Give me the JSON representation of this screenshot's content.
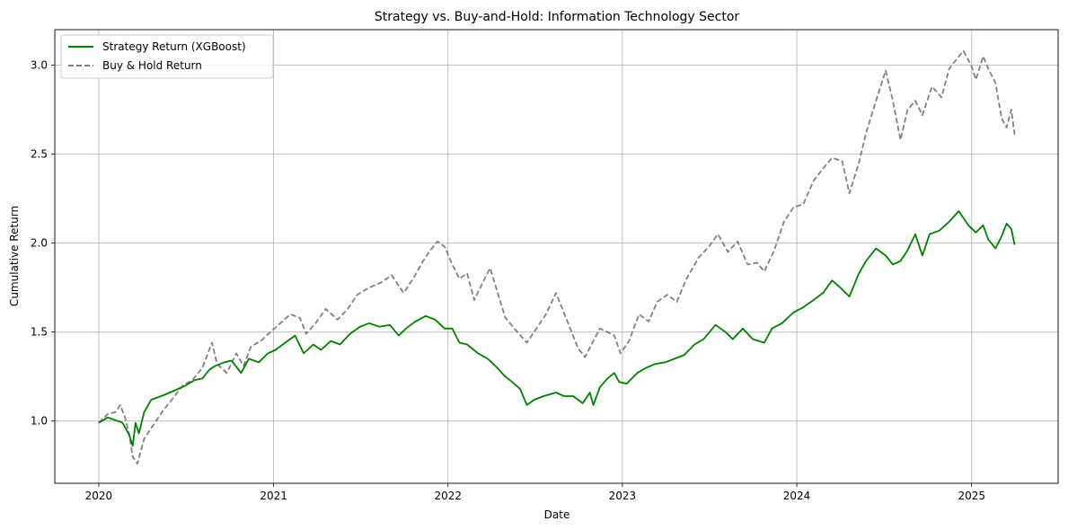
{
  "chart_data": {
    "type": "line",
    "title": "Strategy vs. Buy-and-Hold: Information Technology Sector",
    "xlabel": "Date",
    "ylabel": "Cumulative Return",
    "xlim": [
      "2019-10-01",
      "2025-07-01"
    ],
    "ylim": [
      0.65,
      3.2
    ],
    "x_ticks": [
      {
        "label": "2020",
        "date": "2020-01-01"
      },
      {
        "label": "2021",
        "date": "2021-01-01"
      },
      {
        "label": "2022",
        "date": "2022-01-01"
      },
      {
        "label": "2023",
        "date": "2023-01-01"
      },
      {
        "label": "2024",
        "date": "2024-01-01"
      },
      {
        "label": "2025",
        "date": "2025-01-01"
      }
    ],
    "y_ticks": [
      1.0,
      1.5,
      2.0,
      2.5,
      3.0
    ],
    "grid": true,
    "legend": "upper-left",
    "series": [
      {
        "name": "Strategy Return (XGBoost)",
        "color": "#008000",
        "style": "solid",
        "points": [
          [
            "2020-01-01",
            0.99
          ],
          [
            "2020-01-20",
            1.02
          ],
          [
            "2020-02-10",
            1.0
          ],
          [
            "2020-02-20",
            0.99
          ],
          [
            "2020-03-05",
            0.92
          ],
          [
            "2020-03-12",
            0.86
          ],
          [
            "2020-03-18",
            0.99
          ],
          [
            "2020-03-25",
            0.93
          ],
          [
            "2020-04-05",
            1.05
          ],
          [
            "2020-04-20",
            1.12
          ],
          [
            "2020-05-01",
            1.13
          ],
          [
            "2020-05-20",
            1.15
          ],
          [
            "2020-06-15",
            1.18
          ],
          [
            "2020-07-01",
            1.2
          ],
          [
            "2020-07-20",
            1.23
          ],
          [
            "2020-08-05",
            1.24
          ],
          [
            "2020-08-20",
            1.29
          ],
          [
            "2020-09-01",
            1.31
          ],
          [
            "2020-09-20",
            1.33
          ],
          [
            "2020-10-05",
            1.34
          ],
          [
            "2020-10-25",
            1.27
          ],
          [
            "2020-11-10",
            1.35
          ],
          [
            "2020-12-01",
            1.33
          ],
          [
            "2020-12-20",
            1.38
          ],
          [
            "2021-01-05",
            1.4
          ],
          [
            "2021-01-25",
            1.44
          ],
          [
            "2021-02-15",
            1.48
          ],
          [
            "2021-03-05",
            1.38
          ],
          [
            "2021-03-25",
            1.43
          ],
          [
            "2021-04-10",
            1.4
          ],
          [
            "2021-05-01",
            1.45
          ],
          [
            "2021-05-20",
            1.43
          ],
          [
            "2021-06-10",
            1.49
          ],
          [
            "2021-07-01",
            1.53
          ],
          [
            "2021-07-20",
            1.55
          ],
          [
            "2021-08-10",
            1.53
          ],
          [
            "2021-09-01",
            1.54
          ],
          [
            "2021-09-20",
            1.48
          ],
          [
            "2021-10-05",
            1.52
          ],
          [
            "2021-10-25",
            1.56
          ],
          [
            "2021-11-15",
            1.59
          ],
          [
            "2021-12-05",
            1.57
          ],
          [
            "2021-12-25",
            1.52
          ],
          [
            "2022-01-10",
            1.52
          ],
          [
            "2022-01-25",
            1.44
          ],
          [
            "2022-02-10",
            1.43
          ],
          [
            "2022-03-05",
            1.38
          ],
          [
            "2022-03-25",
            1.35
          ],
          [
            "2022-04-10",
            1.31
          ],
          [
            "2022-05-01",
            1.25
          ],
          [
            "2022-05-15",
            1.22
          ],
          [
            "2022-06-01",
            1.18
          ],
          [
            "2022-06-15",
            1.09
          ],
          [
            "2022-07-01",
            1.12
          ],
          [
            "2022-07-20",
            1.14
          ],
          [
            "2022-08-15",
            1.16
          ],
          [
            "2022-09-01",
            1.14
          ],
          [
            "2022-09-20",
            1.14
          ],
          [
            "2022-10-10",
            1.1
          ],
          [
            "2022-10-25",
            1.16
          ],
          [
            "2022-11-01",
            1.09
          ],
          [
            "2022-11-15",
            1.19
          ],
          [
            "2022-12-01",
            1.24
          ],
          [
            "2022-12-15",
            1.27
          ],
          [
            "2022-12-25",
            1.22
          ],
          [
            "2023-01-10",
            1.21
          ],
          [
            "2023-02-01",
            1.27
          ],
          [
            "2023-02-20",
            1.3
          ],
          [
            "2023-03-10",
            1.32
          ],
          [
            "2023-04-01",
            1.33
          ],
          [
            "2023-04-20",
            1.35
          ],
          [
            "2023-05-10",
            1.37
          ],
          [
            "2023-06-01",
            1.43
          ],
          [
            "2023-06-20",
            1.46
          ],
          [
            "2023-07-15",
            1.54
          ],
          [
            "2023-08-05",
            1.5
          ],
          [
            "2023-08-20",
            1.46
          ],
          [
            "2023-09-10",
            1.52
          ],
          [
            "2023-10-01",
            1.46
          ],
          [
            "2023-10-25",
            1.44
          ],
          [
            "2023-11-10",
            1.52
          ],
          [
            "2023-12-01",
            1.55
          ],
          [
            "2023-12-25",
            1.61
          ],
          [
            "2024-01-15",
            1.64
          ],
          [
            "2024-02-05",
            1.68
          ],
          [
            "2024-02-25",
            1.72
          ],
          [
            "2024-03-15",
            1.79
          ],
          [
            "2024-04-05",
            1.74
          ],
          [
            "2024-04-20",
            1.7
          ],
          [
            "2024-05-10",
            1.83
          ],
          [
            "2024-05-25",
            1.9
          ],
          [
            "2024-06-15",
            1.97
          ],
          [
            "2024-07-05",
            1.93
          ],
          [
            "2024-07-20",
            1.88
          ],
          [
            "2024-08-05",
            1.9
          ],
          [
            "2024-08-20",
            1.96
          ],
          [
            "2024-09-05",
            2.05
          ],
          [
            "2024-09-20",
            1.93
          ],
          [
            "2024-10-05",
            2.05
          ],
          [
            "2024-10-25",
            2.07
          ],
          [
            "2024-11-15",
            2.12
          ],
          [
            "2024-12-05",
            2.18
          ],
          [
            "2024-12-25",
            2.1
          ],
          [
            "2025-01-10",
            2.06
          ],
          [
            "2025-01-25",
            2.1
          ],
          [
            "2025-02-05",
            2.02
          ],
          [
            "2025-02-20",
            1.97
          ],
          [
            "2025-03-05",
            2.04
          ],
          [
            "2025-03-15",
            2.11
          ],
          [
            "2025-03-25",
            2.08
          ],
          [
            "2025-04-01",
            1.99
          ]
        ]
      },
      {
        "name": "Buy & Hold Return",
        "color": "#808080",
        "style": "dashed",
        "points": [
          [
            "2020-01-01",
            0.99
          ],
          [
            "2020-01-20",
            1.04
          ],
          [
            "2020-02-05",
            1.05
          ],
          [
            "2020-02-15",
            1.09
          ],
          [
            "2020-02-25",
            1.02
          ],
          [
            "2020-03-05",
            0.92
          ],
          [
            "2020-03-12",
            0.8
          ],
          [
            "2020-03-22",
            0.76
          ],
          [
            "2020-04-05",
            0.9
          ],
          [
            "2020-04-25",
            0.98
          ],
          [
            "2020-05-15",
            1.06
          ],
          [
            "2020-06-05",
            1.13
          ],
          [
            "2020-06-25",
            1.2
          ],
          [
            "2020-07-15",
            1.23
          ],
          [
            "2020-08-05",
            1.3
          ],
          [
            "2020-08-25",
            1.44
          ],
          [
            "2020-09-05",
            1.32
          ],
          [
            "2020-09-25",
            1.27
          ],
          [
            "2020-10-15",
            1.38
          ],
          [
            "2020-10-30",
            1.31
          ],
          [
            "2020-11-15",
            1.42
          ],
          [
            "2020-12-05",
            1.45
          ],
          [
            "2020-12-25",
            1.5
          ],
          [
            "2021-01-15",
            1.55
          ],
          [
            "2021-02-05",
            1.6
          ],
          [
            "2021-02-25",
            1.58
          ],
          [
            "2021-03-10",
            1.49
          ],
          [
            "2021-03-30",
            1.55
          ],
          [
            "2021-04-20",
            1.63
          ],
          [
            "2021-05-15",
            1.57
          ],
          [
            "2021-06-05",
            1.63
          ],
          [
            "2021-06-25",
            1.71
          ],
          [
            "2021-07-20",
            1.75
          ],
          [
            "2021-08-15",
            1.78
          ],
          [
            "2021-09-05",
            1.82
          ],
          [
            "2021-09-30",
            1.72
          ],
          [
            "2021-10-20",
            1.8
          ],
          [
            "2021-11-10",
            1.9
          ],
          [
            "2021-11-25",
            1.96
          ],
          [
            "2021-12-10",
            2.01
          ],
          [
            "2021-12-25",
            1.98
          ],
          [
            "2022-01-10",
            1.88
          ],
          [
            "2022-01-25",
            1.8
          ],
          [
            "2022-02-10",
            1.83
          ],
          [
            "2022-02-25",
            1.68
          ],
          [
            "2022-03-15",
            1.78
          ],
          [
            "2022-03-30",
            1.86
          ],
          [
            "2022-04-15",
            1.72
          ],
          [
            "2022-05-01",
            1.58
          ],
          [
            "2022-05-20",
            1.52
          ],
          [
            "2022-06-15",
            1.44
          ],
          [
            "2022-07-05",
            1.52
          ],
          [
            "2022-07-25",
            1.6
          ],
          [
            "2022-08-15",
            1.72
          ],
          [
            "2022-09-05",
            1.58
          ],
          [
            "2022-09-30",
            1.41
          ],
          [
            "2022-10-15",
            1.36
          ],
          [
            "2022-11-01",
            1.45
          ],
          [
            "2022-11-15",
            1.52
          ],
          [
            "2022-12-01",
            1.5
          ],
          [
            "2022-12-15",
            1.48
          ],
          [
            "2022-12-28",
            1.38
          ],
          [
            "2023-01-15",
            1.45
          ],
          [
            "2023-02-05",
            1.6
          ],
          [
            "2023-02-25",
            1.56
          ],
          [
            "2023-03-15",
            1.67
          ],
          [
            "2023-04-05",
            1.71
          ],
          [
            "2023-04-25",
            1.67
          ],
          [
            "2023-05-15",
            1.8
          ],
          [
            "2023-06-10",
            1.92
          ],
          [
            "2023-07-01",
            1.98
          ],
          [
            "2023-07-20",
            2.05
          ],
          [
            "2023-08-10",
            1.95
          ],
          [
            "2023-08-30",
            2.01
          ],
          [
            "2023-09-20",
            1.88
          ],
          [
            "2023-10-10",
            1.89
          ],
          [
            "2023-10-25",
            1.84
          ],
          [
            "2023-11-15",
            1.96
          ],
          [
            "2023-12-05",
            2.12
          ],
          [
            "2023-12-25",
            2.2
          ],
          [
            "2024-01-15",
            2.22
          ],
          [
            "2024-02-05",
            2.35
          ],
          [
            "2024-02-25",
            2.42
          ],
          [
            "2024-03-15",
            2.48
          ],
          [
            "2024-04-05",
            2.46
          ],
          [
            "2024-04-20",
            2.28
          ],
          [
            "2024-05-10",
            2.45
          ],
          [
            "2024-05-25",
            2.62
          ],
          [
            "2024-06-15",
            2.8
          ],
          [
            "2024-07-05",
            2.97
          ],
          [
            "2024-07-20",
            2.8
          ],
          [
            "2024-08-05",
            2.58
          ],
          [
            "2024-08-20",
            2.75
          ],
          [
            "2024-09-05",
            2.8
          ],
          [
            "2024-09-20",
            2.72
          ],
          [
            "2024-10-10",
            2.88
          ],
          [
            "2024-10-30",
            2.82
          ],
          [
            "2024-11-15",
            2.98
          ],
          [
            "2024-12-05",
            3.05
          ],
          [
            "2024-12-15",
            3.08
          ],
          [
            "2024-12-31",
            3.0
          ],
          [
            "2025-01-10",
            2.92
          ],
          [
            "2025-01-25",
            3.05
          ],
          [
            "2025-02-05",
            2.98
          ],
          [
            "2025-02-20",
            2.9
          ],
          [
            "2025-03-05",
            2.7
          ],
          [
            "2025-03-15",
            2.65
          ],
          [
            "2025-03-25",
            2.75
          ],
          [
            "2025-04-01",
            2.61
          ]
        ]
      }
    ]
  }
}
